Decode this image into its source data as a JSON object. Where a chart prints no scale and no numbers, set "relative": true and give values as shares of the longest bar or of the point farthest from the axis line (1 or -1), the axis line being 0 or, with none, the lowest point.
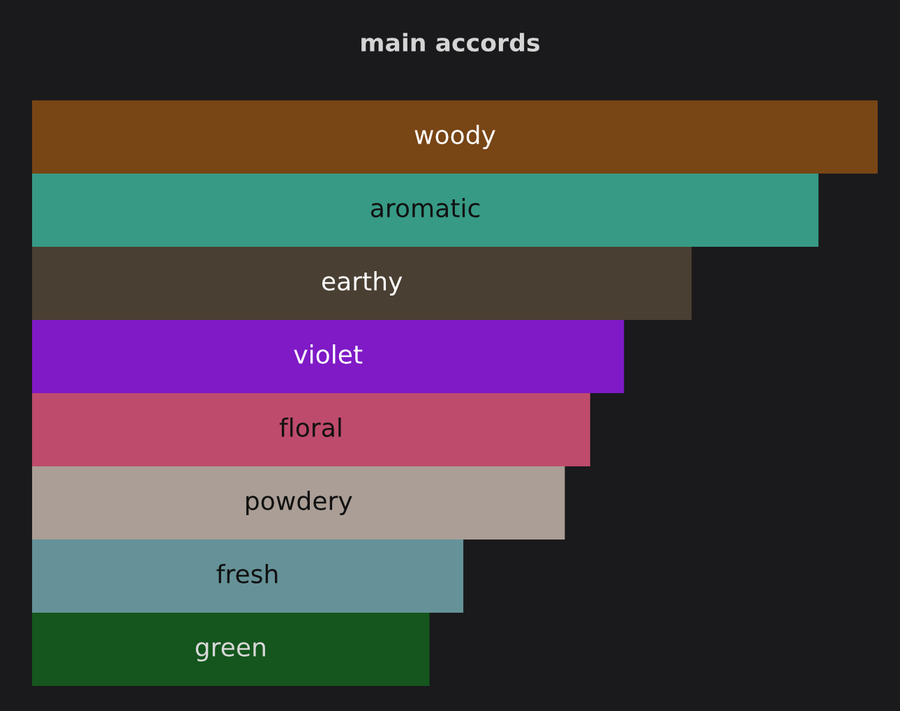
{
  "chart_data": {
    "type": "bar",
    "title": "main accords",
    "orientation": "horizontal",
    "relative": true,
    "categories": [
      "woody",
      "aromatic",
      "earthy",
      "violet",
      "floral",
      "powdery",
      "fresh",
      "green"
    ],
    "values": [
      1,
      0.93,
      0.78,
      0.7,
      0.66,
      0.63,
      0.51,
      0.47
    ],
    "colors": [
      "#784515",
      "#379a85",
      "#4a3f33",
      "#7f1ac6",
      "#be4b6c",
      "#aa9e96",
      "#659298",
      "#14561d"
    ]
  }
}
